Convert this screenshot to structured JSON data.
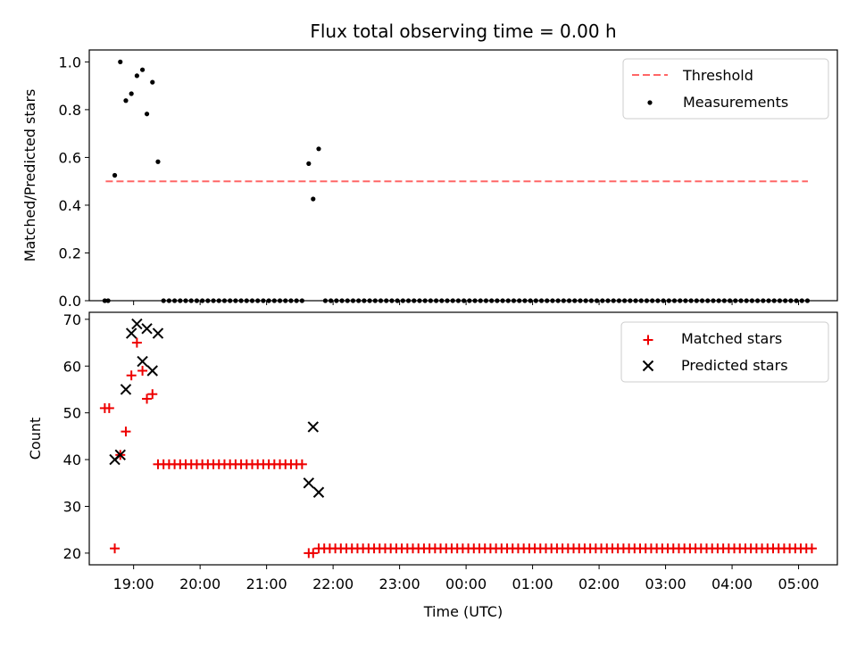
{
  "title": "Flux total observing time = 0.00 h",
  "colors": {
    "threshold": "#ff6666",
    "measurement": "#000000",
    "matched": "#ee0000",
    "predicted": "#000000"
  },
  "chart_data": [
    {
      "type": "scatter",
      "ylabel": "Matched/Predicted stars",
      "xlabel": "",
      "ylim": [
        0,
        1.05
      ],
      "yticks": [
        0.0,
        0.2,
        0.4,
        0.6,
        0.8,
        1.0
      ],
      "ytick_labels": [
        "0.0",
        "0.2",
        "0.4",
        "0.6",
        "0.8",
        "1.0"
      ],
      "threshold": {
        "name": "Threshold",
        "y": 0.5,
        "x": [
          "18:30",
          "05:10"
        ]
      },
      "legend": {
        "position": "top-right",
        "entries": [
          "Threshold",
          "Measurements"
        ]
      },
      "series": [
        {
          "name": "Measurements",
          "marker": "dot",
          "x": [
            "18:34",
            "18:37",
            "18:41",
            "18:44",
            "18:48",
            "18:51",
            "18:54",
            "18:58",
            "19:01",
            "19:05",
            "19:08",
            "19:11",
            "19:14",
            "19:18",
            "19:21",
            "19:24",
            "19:27",
            "19:31",
            "19:34",
            "19:37",
            "19:40",
            "19:44",
            "19:47",
            "19:50",
            "19:53",
            "19:57",
            "20:00",
            "20:03",
            "20:06",
            "20:10",
            "20:13",
            "20:16",
            "20:19",
            "20:23",
            "20:26",
            "20:29",
            "20:32",
            "20:36",
            "20:39",
            "20:42",
            "20:45",
            "20:49",
            "20:52",
            "20:55",
            "20:58",
            "21:02",
            "21:05",
            "21:08",
            "21:11",
            "21:15",
            "21:18",
            "21:21",
            "21:24",
            "21:28",
            "21:31",
            "21:34",
            "21:37",
            "21:41",
            "21:44",
            "21:47",
            "21:50",
            "21:54",
            "21:57",
            "22:00",
            "22:03",
            "22:07",
            "22:10",
            "22:13",
            "22:16",
            "22:20",
            "22:23",
            "22:26",
            "22:29",
            "22:33",
            "22:36",
            "22:39",
            "22:42",
            "22:46",
            "22:49",
            "22:52",
            "22:55",
            "22:59",
            "23:02",
            "23:05",
            "23:08",
            "23:12",
            "23:15",
            "23:18",
            "23:21",
            "23:25",
            "23:28",
            "23:31",
            "23:34",
            "23:38",
            "23:41",
            "23:44",
            "23:47",
            "23:51",
            "23:54",
            "23:57",
            "00:00",
            "00:04",
            "00:07",
            "00:10",
            "00:13",
            "00:17",
            "00:20",
            "00:23",
            "00:26",
            "00:30",
            "00:33",
            "00:36",
            "00:39",
            "00:43",
            "00:46",
            "00:49",
            "00:52",
            "00:56",
            "00:59",
            "01:02",
            "01:05",
            "01:09",
            "01:12",
            "01:15",
            "01:18",
            "01:22",
            "01:25",
            "01:28",
            "01:31",
            "01:35",
            "01:38",
            "01:41",
            "01:44",
            "01:48",
            "01:51",
            "01:54",
            "01:57",
            "02:01",
            "02:04",
            "02:07",
            "02:10",
            "02:14",
            "02:17",
            "02:20",
            "02:23",
            "02:27",
            "02:30",
            "02:33",
            "02:36",
            "02:40",
            "02:43",
            "02:46",
            "02:49",
            "02:53",
            "02:56",
            "02:59",
            "03:02",
            "03:06",
            "03:09",
            "03:12",
            "03:15",
            "03:19",
            "03:22",
            "03:25",
            "03:28",
            "03:32",
            "03:35",
            "03:38",
            "03:41",
            "03:45",
            "03:48",
            "03:51",
            "03:54",
            "03:58",
            "04:01",
            "04:04",
            "04:07",
            "04:11",
            "04:14",
            "04:17",
            "04:20",
            "04:24",
            "04:27",
            "04:30",
            "04:33",
            "04:37",
            "04:40",
            "04:43",
            "04:46",
            "04:50",
            "04:53",
            "04:56",
            "04:59",
            "05:03",
            "05:06",
            "05:09",
            "05:12"
          ],
          "y_sparse": [
            {
              "x": "18:34",
              "y": 0.0
            },
            {
              "x": "18:37",
              "y": 0.0
            },
            {
              "x": "18:43",
              "y": 0.525
            },
            {
              "x": "18:48",
              "y": 1.0
            },
            {
              "x": "18:53",
              "y": 0.838
            },
            {
              "x": "18:58",
              "y": 0.867
            },
            {
              "x": "19:03",
              "y": 0.942
            },
            {
              "x": "19:08",
              "y": 0.967
            },
            {
              "x": "19:12",
              "y": 0.782
            },
            {
              "x": "19:17",
              "y": 0.915
            },
            {
              "x": "19:22",
              "y": 0.582
            },
            {
              "x": "21:38",
              "y": 0.574
            },
            {
              "x": "21:42",
              "y": 0.426
            },
            {
              "x": "21:47",
              "y": 0.636
            }
          ],
          "zero_runs": [
            {
              "start": "19:27",
              "end": "21:33",
              "step_min": 5
            },
            {
              "start": "21:53",
              "end": "05:12",
              "step_min": 5
            }
          ]
        }
      ]
    },
    {
      "type": "scatter",
      "ylabel": "Count",
      "xlabel": "Time (UTC)",
      "ylim": [
        17.5,
        71.5
      ],
      "yticks": [
        20,
        30,
        40,
        50,
        60,
        70
      ],
      "ytick_labels": [
        "20",
        "30",
        "40",
        "50",
        "60",
        "70"
      ],
      "xtick_labels": [
        "19:00",
        "20:00",
        "21:00",
        "22:00",
        "23:00",
        "00:00",
        "01:00",
        "02:00",
        "03:00",
        "04:00",
        "05:00"
      ],
      "legend": {
        "position": "top-right",
        "entries": [
          "Matched stars",
          "Predicted stars"
        ]
      },
      "series": [
        {
          "name": "Matched stars",
          "marker": "plus",
          "points": [
            {
              "x": "18:34",
              "y": 51
            },
            {
              "x": "18:38",
              "y": 51
            },
            {
              "x": "18:43",
              "y": 21
            },
            {
              "x": "18:48",
              "y": 41
            },
            {
              "x": "18:53",
              "y": 46
            },
            {
              "x": "18:58",
              "y": 58
            },
            {
              "x": "19:03",
              "y": 65
            },
            {
              "x": "19:08",
              "y": 59
            },
            {
              "x": "19:12",
              "y": 53
            },
            {
              "x": "19:17",
              "y": 54
            },
            {
              "x": "21:38",
              "y": 20
            },
            {
              "x": "21:42",
              "y": 20
            }
          ],
          "runs": [
            {
              "start": "19:22",
              "end": "21:33",
              "step_min": 5,
              "y": 39
            },
            {
              "start": "21:47",
              "end": "05:12",
              "step_min": 5,
              "y": 21
            }
          ]
        },
        {
          "name": "Predicted stars",
          "marker": "x",
          "points": [
            {
              "x": "18:43",
              "y": 40
            },
            {
              "x": "18:48",
              "y": 41
            },
            {
              "x": "18:53",
              "y": 55
            },
            {
              "x": "18:58",
              "y": 67
            },
            {
              "x": "19:03",
              "y": 69
            },
            {
              "x": "19:08",
              "y": 61
            },
            {
              "x": "19:12",
              "y": 68
            },
            {
              "x": "19:17",
              "y": 59
            },
            {
              "x": "19:22",
              "y": 67
            },
            {
              "x": "21:38",
              "y": 35
            },
            {
              "x": "21:42",
              "y": 47
            },
            {
              "x": "21:47",
              "y": 33
            }
          ]
        }
      ]
    }
  ],
  "x_axis": {
    "start": "18:20",
    "end": "05:35"
  }
}
